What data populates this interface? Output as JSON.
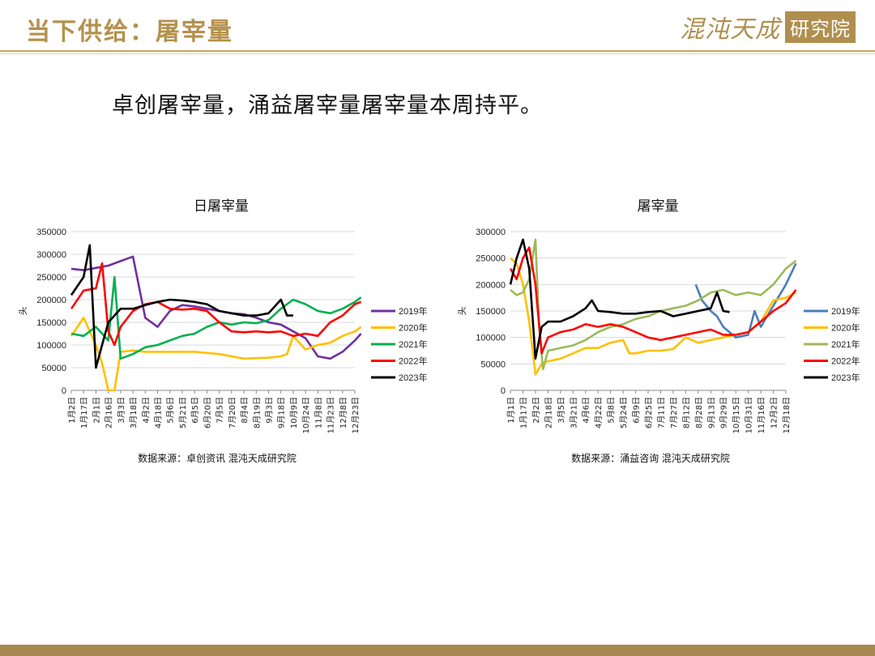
{
  "header": {
    "title": "当下供给：屠宰量",
    "logo_script": "混沌天成",
    "logo_box": "研究院"
  },
  "summary": "卓创屠宰量，涌益屠宰量屠宰量本周持平。",
  "colors": {
    "gold": "#b5914c",
    "2019年": "#7030a0",
    "2020年": "#ffc000",
    "2021年": "#00b050",
    "2022年": "#ff0000",
    "2023年": "#000000",
    "2019年_right": "#4a7ebb",
    "2021年_right": "#9bbb59"
  },
  "chart_data": [
    {
      "type": "line",
      "title": "日屠宰量",
      "ylabel": "头",
      "ylim": [
        0,
        350000
      ],
      "yticks": [
        0,
        50000,
        100000,
        150000,
        200000,
        250000,
        300000,
        350000
      ],
      "x_labels": [
        "1月2日",
        "1月17日",
        "2月1日",
        "2月16日",
        "3月3日",
        "3月18日",
        "4月2日",
        "4月18日",
        "5月6日",
        "5月21日",
        "6月5日",
        "6月20日",
        "7月5日",
        "7月20日",
        "8月4日",
        "8月19日",
        "9月3日",
        "9月18日",
        "10月9日",
        "10月24日",
        "11月8日",
        "11月23日",
        "12月8日",
        "12月23日"
      ],
      "source": "数据来源：卓创资讯 混沌天成研究院",
      "legend": [
        "2019年",
        "2020年",
        "2021年",
        "2022年",
        "2023年"
      ],
      "series": [
        {
          "name": "2019年",
          "points": [
            [
              0,
              268000
            ],
            [
              1,
              265000
            ],
            [
              2,
              270000
            ],
            [
              3,
              275000
            ],
            [
              4,
              285000
            ],
            [
              5,
              295000
            ],
            [
              6,
              160000
            ],
            [
              7,
              140000
            ],
            [
              8,
              175000
            ],
            [
              9,
              188000
            ],
            [
              10,
              185000
            ],
            [
              11,
              180000
            ],
            [
              12,
              175000
            ],
            [
              13,
              170000
            ],
            [
              14,
              168000
            ],
            [
              15,
              160000
            ],
            [
              16,
              150000
            ],
            [
              17,
              145000
            ],
            [
              18,
              130000
            ],
            [
              19,
              115000
            ],
            [
              20,
              75000
            ],
            [
              21,
              70000
            ],
            [
              22,
              85000
            ],
            [
              23,
              110000
            ],
            [
              23.5,
              125000
            ]
          ]
        },
        {
          "name": "2020年",
          "points": [
            [
              0,
              120000
            ],
            [
              1,
              160000
            ],
            [
              2,
              100000
            ],
            [
              2.5,
              60000
            ],
            [
              3,
              0
            ],
            [
              3.5,
              0
            ],
            [
              4,
              85000
            ],
            [
              5,
              88000
            ],
            [
              6,
              85000
            ],
            [
              8,
              85000
            ],
            [
              10,
              85000
            ],
            [
              12,
              80000
            ],
            [
              14,
              70000
            ],
            [
              16,
              72000
            ],
            [
              17,
              75000
            ],
            [
              17.5,
              80000
            ],
            [
              18,
              120000
            ],
            [
              19,
              90000
            ],
            [
              20,
              100000
            ],
            [
              21,
              105000
            ],
            [
              22,
              120000
            ],
            [
              23,
              130000
            ],
            [
              23.5,
              140000
            ]
          ]
        },
        {
          "name": "2021年",
          "points": [
            [
              0,
              125000
            ],
            [
              1,
              120000
            ],
            [
              2,
              140000
            ],
            [
              3,
              110000
            ],
            [
              3.5,
              250000
            ],
            [
              4,
              70000
            ],
            [
              5,
              80000
            ],
            [
              6,
              95000
            ],
            [
              7,
              100000
            ],
            [
              8,
              110000
            ],
            [
              9,
              120000
            ],
            [
              10,
              125000
            ],
            [
              11,
              140000
            ],
            [
              12,
              150000
            ],
            [
              13,
              145000
            ],
            [
              14,
              150000
            ],
            [
              15,
              148000
            ],
            [
              16,
              155000
            ],
            [
              17,
              180000
            ],
            [
              18,
              200000
            ],
            [
              19,
              190000
            ],
            [
              20,
              175000
            ],
            [
              21,
              170000
            ],
            [
              22,
              180000
            ],
            [
              23,
              195000
            ],
            [
              23.5,
              205000
            ]
          ]
        },
        {
          "name": "2022年",
          "points": [
            [
              0,
              180000
            ],
            [
              1,
              220000
            ],
            [
              2,
              225000
            ],
            [
              2.5,
              280000
            ],
            [
              3,
              130000
            ],
            [
              3.5,
              100000
            ],
            [
              4,
              140000
            ],
            [
              5,
              175000
            ],
            [
              6,
              190000
            ],
            [
              7,
              195000
            ],
            [
              8,
              180000
            ],
            [
              9,
              178000
            ],
            [
              10,
              180000
            ],
            [
              11,
              175000
            ],
            [
              12,
              150000
            ],
            [
              13,
              130000
            ],
            [
              14,
              128000
            ],
            [
              15,
              130000
            ],
            [
              16,
              128000
            ],
            [
              17,
              130000
            ],
            [
              18,
              120000
            ],
            [
              19,
              125000
            ],
            [
              20,
              120000
            ],
            [
              21,
              150000
            ],
            [
              22,
              165000
            ],
            [
              23,
              190000
            ],
            [
              23.5,
              195000
            ]
          ]
        },
        {
          "name": "2023年",
          "points": [
            [
              0,
              210000
            ],
            [
              1,
              250000
            ],
            [
              1.5,
              320000
            ],
            [
              2,
              50000
            ],
            [
              2.5,
              100000
            ],
            [
              3,
              150000
            ],
            [
              4,
              180000
            ],
            [
              5,
              180000
            ],
            [
              6,
              188000
            ],
            [
              7,
              195000
            ],
            [
              8,
              200000
            ],
            [
              9,
              198000
            ],
            [
              10,
              195000
            ],
            [
              11,
              190000
            ],
            [
              12,
              175000
            ],
            [
              13,
              170000
            ],
            [
              14,
              165000
            ],
            [
              15,
              165000
            ],
            [
              16,
              170000
            ],
            [
              17,
              200000
            ],
            [
              17.5,
              165000
            ],
            [
              18,
              165000
            ]
          ]
        }
      ]
    },
    {
      "type": "line",
      "title": "屠宰量",
      "ylabel": "头",
      "ylim": [
        0,
        300000
      ],
      "yticks": [
        0,
        50000,
        100000,
        150000,
        200000,
        250000,
        300000
      ],
      "x_labels": [
        "1月1日",
        "1月17日",
        "2月2日",
        "2月18日",
        "3月5日",
        "3月21日",
        "4月6日",
        "4月22日",
        "5月8日",
        "5月24日",
        "6月9日",
        "6月25日",
        "7月11日",
        "7月27日",
        "8月12日",
        "8月28日",
        "9月13日",
        "9月29日",
        "10月15日",
        "10月31日",
        "11月16日",
        "12月2日",
        "12月18日"
      ],
      "source": "数据来源：涌益咨询 混沌天成研究院",
      "legend": [
        "2019年",
        "2020年",
        "2021年",
        "2022年",
        "2023年"
      ],
      "series": [
        {
          "name": "2019年",
          "points": [
            [
              14.8,
              200000
            ],
            [
              15.3,
              170000
            ],
            [
              16,
              150000
            ],
            [
              16.5,
              140000
            ],
            [
              17,
              120000
            ],
            [
              18,
              100000
            ],
            [
              19,
              105000
            ],
            [
              19.5,
              150000
            ],
            [
              20,
              120000
            ],
            [
              21,
              160000
            ],
            [
              22,
              200000
            ],
            [
              22.8,
              240000
            ]
          ]
        },
        {
          "name": "2020年",
          "points": [
            [
              0,
              250000
            ],
            [
              0.5,
              240000
            ],
            [
              1,
              200000
            ],
            [
              1.5,
              130000
            ],
            [
              2,
              30000
            ],
            [
              2.5,
              50000
            ],
            [
              3,
              55000
            ],
            [
              4,
              60000
            ],
            [
              5,
              70000
            ],
            [
              6,
              80000
            ],
            [
              7,
              80000
            ],
            [
              8,
              90000
            ],
            [
              9,
              95000
            ],
            [
              9.5,
              70000
            ],
            [
              10,
              70000
            ],
            [
              11,
              75000
            ],
            [
              12,
              75000
            ],
            [
              13,
              78000
            ],
            [
              14,
              100000
            ],
            [
              15,
              90000
            ],
            [
              16,
              95000
            ],
            [
              17,
              100000
            ],
            [
              18,
              105000
            ],
            [
              19,
              110000
            ],
            [
              20,
              130000
            ],
            [
              21,
              170000
            ],
            [
              22,
              175000
            ],
            [
              22.8,
              185000
            ]
          ]
        },
        {
          "name": "2021年",
          "points": [
            [
              0,
              190000
            ],
            [
              0.5,
              180000
            ],
            [
              1,
              185000
            ],
            [
              1.5,
              210000
            ],
            [
              2,
              285000
            ],
            [
              2.3,
              120000
            ],
            [
              2.6,
              40000
            ],
            [
              3,
              75000
            ],
            [
              4,
              80000
            ],
            [
              5,
              85000
            ],
            [
              6,
              95000
            ],
            [
              7,
              110000
            ],
            [
              8,
              120000
            ],
            [
              9,
              125000
            ],
            [
              10,
              135000
            ],
            [
              11,
              140000
            ],
            [
              12,
              150000
            ],
            [
              13,
              155000
            ],
            [
              14,
              160000
            ],
            [
              15,
              170000
            ],
            [
              16,
              185000
            ],
            [
              17,
              190000
            ],
            [
              18,
              180000
            ],
            [
              19,
              185000
            ],
            [
              20,
              180000
            ],
            [
              21,
              200000
            ],
            [
              22,
              230000
            ],
            [
              22.8,
              245000
            ]
          ]
        },
        {
          "name": "2022年",
          "points": [
            [
              0,
              230000
            ],
            [
              0.5,
              210000
            ],
            [
              1,
              250000
            ],
            [
              1.5,
              270000
            ],
            [
              2,
              200000
            ],
            [
              2.5,
              70000
            ],
            [
              3,
              100000
            ],
            [
              4,
              110000
            ],
            [
              5,
              115000
            ],
            [
              6,
              125000
            ],
            [
              7,
              120000
            ],
            [
              8,
              125000
            ],
            [
              9,
              120000
            ],
            [
              10,
              110000
            ],
            [
              11,
              100000
            ],
            [
              12,
              95000
            ],
            [
              13,
              100000
            ],
            [
              14,
              105000
            ],
            [
              15,
              110000
            ],
            [
              16,
              115000
            ],
            [
              17,
              105000
            ],
            [
              18,
              105000
            ],
            [
              19,
              110000
            ],
            [
              20,
              130000
            ],
            [
              21,
              150000
            ],
            [
              22,
              165000
            ],
            [
              22.8,
              190000
            ]
          ]
        },
        {
          "name": "2023年",
          "points": [
            [
              0,
              200000
            ],
            [
              0.5,
              250000
            ],
            [
              1,
              285000
            ],
            [
              1.5,
              230000
            ],
            [
              2,
              60000
            ],
            [
              2.5,
              120000
            ],
            [
              3,
              130000
            ],
            [
              4,
              130000
            ],
            [
              5,
              140000
            ],
            [
              6,
              155000
            ],
            [
              6.5,
              170000
            ],
            [
              7,
              150000
            ],
            [
              8,
              148000
            ],
            [
              9,
              145000
            ],
            [
              10,
              145000
            ],
            [
              11,
              148000
            ],
            [
              12,
              150000
            ],
            [
              13,
              140000
            ],
            [
              14,
              145000
            ],
            [
              15,
              150000
            ],
            [
              16,
              155000
            ],
            [
              16.5,
              185000
            ],
            [
              17,
              150000
            ],
            [
              17.5,
              148000
            ]
          ]
        }
      ]
    }
  ]
}
